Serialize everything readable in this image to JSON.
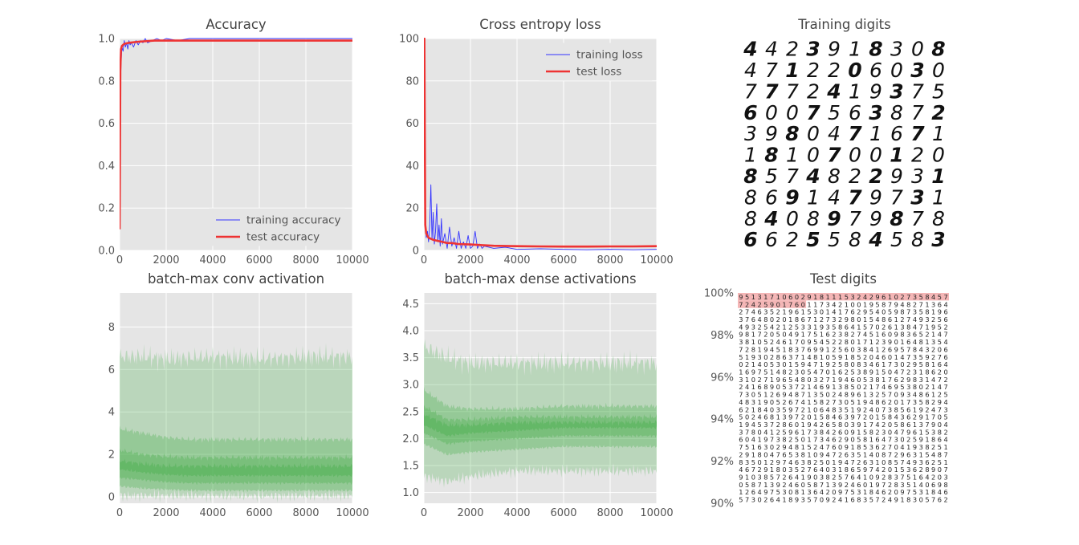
{
  "chart_data": [
    {
      "id": "accuracy",
      "type": "line",
      "title": "Accuracy",
      "xlim": [
        0,
        10000
      ],
      "ylim": [
        0,
        1.0
      ],
      "xticks": [
        0,
        2000,
        4000,
        6000,
        8000,
        10000
      ],
      "yticks": [
        0.0,
        0.2,
        0.4,
        0.6,
        0.8,
        1.0
      ],
      "ytick_labels": [
        "0.0",
        "0.2",
        "0.4",
        "0.6",
        "0.8",
        "1.0"
      ],
      "grid": true,
      "legend_position": "bottom-right",
      "series": [
        {
          "name": "training accuracy",
          "color": "#3333ff",
          "style": "thin",
          "x": [
            0,
            30,
            60,
            100,
            150,
            200,
            250,
            300,
            350,
            400,
            450,
            500,
            600,
            700,
            800,
            900,
            1000,
            1100,
            1200,
            1400,
            1600,
            1800,
            2000,
            2500,
            3000,
            4000,
            6000,
            8000,
            10000
          ],
          "y": [
            0.1,
            0.7,
            0.88,
            0.96,
            0.94,
            0.99,
            0.96,
            0.98,
            0.95,
            0.99,
            0.97,
            0.98,
            0.96,
            0.99,
            0.97,
            0.99,
            0.98,
            1.0,
            0.98,
            0.99,
            1.0,
            0.99,
            1.0,
            0.99,
            1.0,
            1.0,
            1.0,
            1.0,
            1.0
          ]
        },
        {
          "name": "test accuracy",
          "color": "#ee3333",
          "style": "thick",
          "x": [
            0,
            30,
            60,
            100,
            200,
            400,
            800,
            1500,
            2000,
            4000,
            6000,
            8000,
            10000
          ],
          "y": [
            0.1,
            0.85,
            0.95,
            0.965,
            0.975,
            0.98,
            0.985,
            0.99,
            0.99,
            0.99,
            0.99,
            0.99,
            0.99
          ]
        }
      ]
    },
    {
      "id": "loss",
      "type": "line",
      "title": "Cross entropy loss",
      "xlim": [
        0,
        10000
      ],
      "ylim": [
        0,
        100
      ],
      "xticks": [
        0,
        2000,
        4000,
        6000,
        8000,
        10000
      ],
      "yticks": [
        0,
        20,
        40,
        60,
        80,
        100
      ],
      "ytick_labels": [
        "0",
        "20",
        "40",
        "60",
        "80",
        "100"
      ],
      "grid": true,
      "legend_position": "top-right",
      "series": [
        {
          "name": "training loss",
          "color": "#3333ff",
          "style": "thin",
          "x": [
            0,
            50,
            100,
            150,
            200,
            250,
            300,
            350,
            400,
            450,
            500,
            550,
            600,
            650,
            700,
            750,
            800,
            900,
            1000,
            1100,
            1200,
            1300,
            1400,
            1500,
            1600,
            1700,
            1800,
            1900,
            2000,
            2100,
            2200,
            2300,
            2400,
            2500,
            2600,
            3000,
            3500,
            4000,
            5000,
            6000,
            7000,
            8000,
            9000,
            10000
          ],
          "y": [
            100,
            14,
            6,
            9,
            4,
            12,
            31,
            5,
            18,
            3,
            9,
            22,
            4,
            12,
            2,
            15,
            3,
            8,
            1,
            11,
            2,
            6,
            1,
            9,
            1,
            4,
            1,
            7,
            1,
            2,
            9,
            1,
            3,
            1,
            2,
            1,
            1.5,
            0.5,
            0.8,
            0.5,
            0.3,
            0.5,
            0.3,
            0.5
          ]
        },
        {
          "name": "test loss",
          "color": "#ee3333",
          "style": "thick",
          "x": [
            0,
            20,
            60,
            100,
            200,
            400,
            600,
            800,
            1000,
            1200,
            1500,
            2000,
            2500,
            3000,
            4000,
            5000,
            6000,
            7000,
            8000,
            9000,
            10000
          ],
          "y": [
            100,
            100,
            12,
            8,
            6,
            5,
            4.5,
            4,
            3.5,
            3.5,
            3,
            2.8,
            2.5,
            2.2,
            2.0,
            1.9,
            1.8,
            1.8,
            1.9,
            1.9,
            2.0
          ]
        }
      ]
    },
    {
      "id": "conv",
      "type": "area",
      "title": "batch-max conv activation",
      "xlim": [
        0,
        10000
      ],
      "ylim": [
        -0.3,
        9.6
      ],
      "xticks": [
        0,
        2000,
        4000,
        6000,
        8000,
        10000
      ],
      "yticks": [
        0,
        2,
        4,
        6,
        8
      ],
      "ytick_labels": [
        "0",
        "2",
        "4",
        "6",
        "8"
      ],
      "grid": true,
      "color": "#4caf50",
      "bands": [
        {
          "x": [
            0,
            1000,
            2000,
            4000,
            6000,
            8000,
            10000
          ],
          "low": [
            0.05,
            0.05,
            0.05,
            0.05,
            0.05,
            0.05,
            0.05
          ],
          "high": [
            6.6,
            6.6,
            6.5,
            6.6,
            6.5,
            6.6,
            6.6
          ]
        },
        {
          "x": [
            0,
            1000,
            2000,
            3000,
            4000,
            6000,
            8000,
            10000
          ],
          "low": [
            0.5,
            0.4,
            0.35,
            0.3,
            0.3,
            0.3,
            0.3,
            0.3
          ],
          "high": [
            3.2,
            3.0,
            2.8,
            2.7,
            2.7,
            2.7,
            2.7,
            2.7
          ]
        },
        {
          "x": [
            0,
            1000,
            2000,
            3000,
            4000,
            6000,
            8000,
            10000
          ],
          "low": [
            0.9,
            0.8,
            0.7,
            0.65,
            0.65,
            0.65,
            0.65,
            0.65
          ],
          "high": [
            2.2,
            2.0,
            1.9,
            1.85,
            1.85,
            1.85,
            1.85,
            1.85
          ]
        },
        {
          "x": [
            0,
            1000,
            2000,
            3000,
            4000,
            6000,
            8000,
            10000
          ],
          "low": [
            1.3,
            1.15,
            1.05,
            1.0,
            1.0,
            1.0,
            1.0,
            1.0
          ],
          "high": [
            1.7,
            1.55,
            1.45,
            1.45,
            1.45,
            1.45,
            1.45,
            1.45
          ]
        }
      ]
    },
    {
      "id": "dense",
      "type": "area",
      "title": "batch-max dense activations",
      "xlim": [
        0,
        10000
      ],
      "ylim": [
        0.8,
        4.7
      ],
      "xticks": [
        0,
        2000,
        4000,
        6000,
        8000,
        10000
      ],
      "yticks": [
        1.0,
        1.5,
        2.0,
        2.5,
        3.0,
        3.5,
        4.0,
        4.5
      ],
      "ytick_labels": [
        "1.0",
        "1.5",
        "2.0",
        "2.5",
        "3.0",
        "3.5",
        "4.0",
        "4.5"
      ],
      "grid": true,
      "color": "#4caf50",
      "bands": [
        {
          "x": [
            0,
            1000,
            2000,
            4000,
            6000,
            8000,
            10000
          ],
          "low": [
            1.3,
            1.2,
            1.3,
            1.4,
            1.4,
            1.4,
            1.4
          ],
          "high": [
            3.7,
            3.5,
            3.4,
            3.4,
            3.4,
            3.4,
            3.4
          ]
        },
        {
          "x": [
            0,
            1000,
            2000,
            4000,
            6000,
            8000,
            10000
          ],
          "low": [
            1.9,
            1.7,
            1.75,
            1.8,
            1.85,
            1.85,
            1.85
          ],
          "high": [
            2.9,
            2.6,
            2.55,
            2.55,
            2.6,
            2.6,
            2.6
          ]
        },
        {
          "x": [
            0,
            1000,
            2000,
            4000,
            6000,
            8000,
            10000
          ],
          "low": [
            2.1,
            1.9,
            1.95,
            2.0,
            2.05,
            2.05,
            2.05
          ],
          "high": [
            2.6,
            2.35,
            2.35,
            2.4,
            2.4,
            2.4,
            2.4
          ]
        },
        {
          "x": [
            0,
            1000,
            2000,
            4000,
            6000,
            8000,
            10000
          ],
          "low": [
            2.25,
            2.05,
            2.1,
            2.15,
            2.2,
            2.2,
            2.2
          ],
          "high": [
            2.45,
            2.25,
            2.25,
            2.3,
            2.3,
            2.3,
            2.3
          ]
        }
      ]
    },
    {
      "id": "training_digits",
      "type": "table",
      "title": "Training digits",
      "rows": [
        "4423918308",
        "4712206030",
        "7772419375",
        "6007563872",
        "3980471671",
        "1810700120",
        "8574822931",
        "8691479731",
        "8408979878",
        "6625584583"
      ]
    },
    {
      "id": "test_digits",
      "type": "table",
      "title": "Test digits",
      "yticks": [
        90,
        92,
        94,
        96,
        98,
        100
      ],
      "ytick_labels": [
        "90%",
        "92%",
        "94%",
        "96%",
        "98%",
        "100%"
      ],
      "rows": [
        "9513171060291811153242961027358457",
        "7242590176011734210019587948271364",
        "2746352196153014176295405987358196",
        "3764802018671273298015486127493256",
        "4932542125331935864157026138471952",
        "9817205049175162382745160983652147",
        "3810524617095452280171239016481354",
        "7281945183769912560384126957843206",
        "5193028637148105918520460147359276",
        "0214053015947192580834617302958164",
        "1697514823054701625389150472318620",
        "3102719654803271946053817629831472",
        "2416890537214691385021746953802147",
        "7305126948713502489613257093486125",
        "4831905267415827305194862017358294",
        "6218403597210648351924073856192473",
        "5024681397201584639720158436291705",
        "1945372860194265803917420586137904",
        "3780412596173842609158230479615382",
        "6041973825017346290581647302591864",
        "7516302948152476091853627041938251",
        "2918047653810947263514087296315487",
        "8350129746382501947263108574936251",
        "4672918035276403186597420153628907",
        "9103857264190382576410928375164203",
        "0587139246058713924601972835140698",
        "1264975308136420975318462097531846",
        "5730264189357092416835724918305762"
      ],
      "highlight": {
        "color": "#f4b6b6",
        "first_rows_full": 1,
        "second_row_partial_cols": 11
      }
    }
  ]
}
